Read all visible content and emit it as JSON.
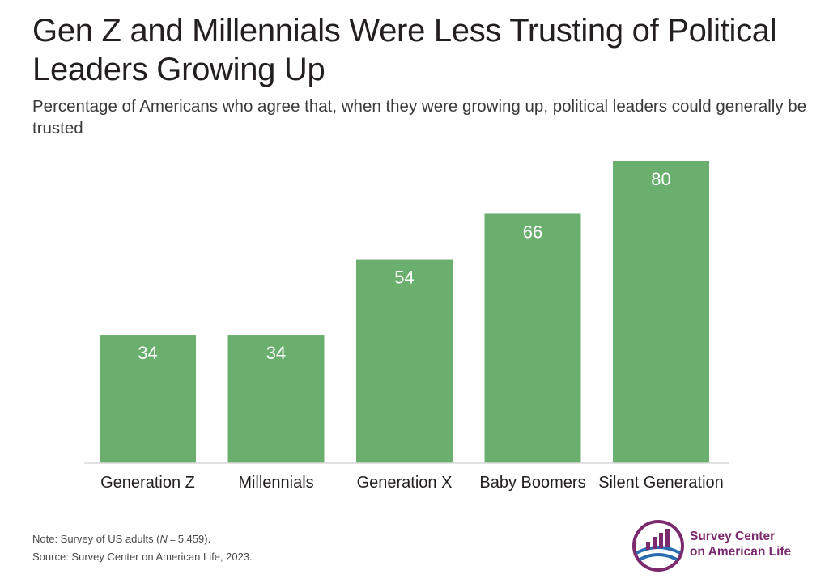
{
  "title": "Gen Z and Millennials Were Less Trusting of Political Leaders Growing Up",
  "subtitle": "Percentage of Americans who agree that, when they were growing up, political leaders could generally be trusted",
  "note": {
    "prefix": "Note: Survey of US adults (",
    "n_symbol": "N",
    "suffix": " = 5,459).",
    "source": "Source: Survey Center on American Life, 2023."
  },
  "logo": {
    "line1": "Survey Center",
    "line2": "on American Life",
    "icon": "bar-chart-circle-logo-icon"
  },
  "colors": {
    "bar": "#6aaf6e",
    "axis": "#d9d9d9",
    "logo_purple": "#7b2a6e",
    "logo_blue": "#2b6cb0"
  },
  "chart_data": {
    "type": "bar",
    "title": "Gen Z and Millennials Were Less Trusting of Political Leaders Growing Up",
    "subtitle": "Percentage of Americans who agree that, when they were growing up, political leaders could generally be trusted",
    "categories": [
      "Generation Z",
      "Millennials",
      "Generation X",
      "Baby Boomers",
      "Silent Generation"
    ],
    "values": [
      34,
      34,
      54,
      66,
      80
    ],
    "labels": [
      "34",
      "34",
      "54",
      "66",
      "80"
    ],
    "xlabel": "",
    "ylabel": "",
    "ylim": [
      0,
      80
    ],
    "grid": false,
    "legend": "none"
  }
}
